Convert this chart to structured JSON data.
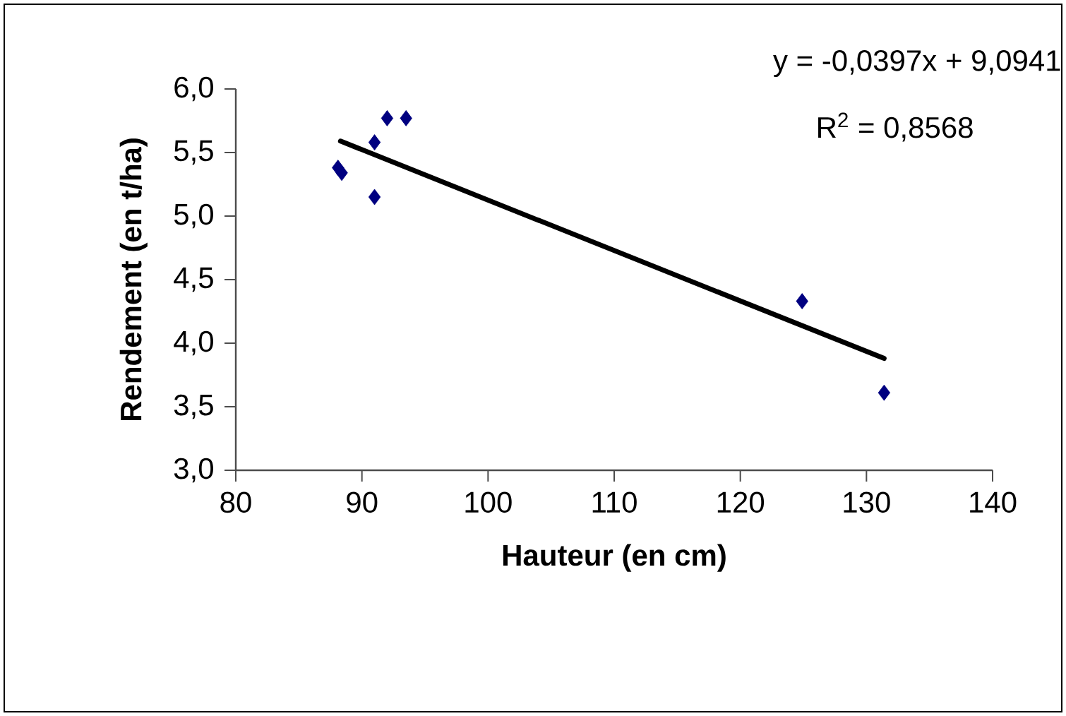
{
  "chart_data": {
    "type": "scatter",
    "xlabel": "Hauteur (en cm)",
    "ylabel": "Rendement (en t/ha)",
    "xlim": [
      80,
      140
    ],
    "xticks": [
      80,
      90,
      100,
      110,
      120,
      130,
      140
    ],
    "ylim": [
      3,
      6
    ],
    "yticks": [
      {
        "value": 3,
        "label": "3,0"
      },
      {
        "value": 3.5,
        "label": "3,5"
      },
      {
        "value": 4,
        "label": "4,0"
      },
      {
        "value": 4.5,
        "label": "4,5"
      },
      {
        "value": 5,
        "label": "5,0"
      },
      {
        "value": 5.5,
        "label": "5,5"
      },
      {
        "value": 6,
        "label": "6,0"
      }
    ],
    "series": [
      {
        "color": "#000080",
        "marker": "diamond",
        "x": [
          88.1,
          88.4,
          91.0,
          91.0,
          92.0,
          93.5,
          124.9,
          131.4
        ],
        "values": [
          5.38,
          5.34,
          5.58,
          5.15,
          5.77,
          5.77,
          4.33,
          3.61
        ]
      },
      {
        "type": "line",
        "color": "#000000",
        "x": [
          88.3,
          131.4
        ],
        "values": [
          5.59,
          3.88
        ]
      }
    ],
    "annotations": [
      "y = -0,0397x + 9,0941",
      "R$^{2}$ = 0,8568"
    ]
  }
}
